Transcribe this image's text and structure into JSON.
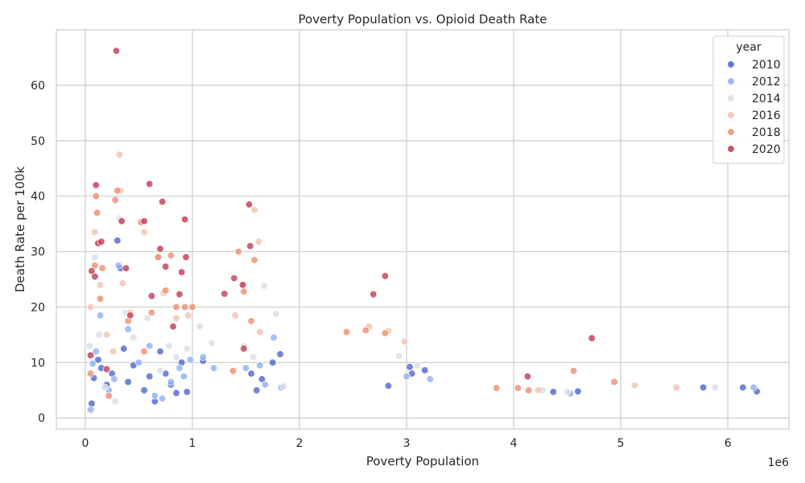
{
  "chart_data": {
    "type": "scatter",
    "title": "Poverty Population vs. Opioid Death Rate",
    "xlabel": "Poverty Population",
    "ylabel": "Death Rate per 100k",
    "x_scale_label": "1e6",
    "xlim": [
      -0.27,
      6.57
    ],
    "ylim": [
      -2.0,
      70.0
    ],
    "x_ticks": [
      0,
      1,
      2,
      3,
      4,
      5,
      6
    ],
    "y_ticks": [
      0,
      10,
      20,
      30,
      40,
      50,
      60
    ],
    "grid": true,
    "legend": {
      "title": "year",
      "placement": "top-right"
    },
    "series": [
      {
        "name": "2010",
        "color": "#4a61c8",
        "points": [
          [
            0.06,
            2.6
          ],
          [
            0.08,
            7.2
          ],
          [
            0.12,
            10.5
          ],
          [
            0.15,
            9.0
          ],
          [
            0.2,
            6.0
          ],
          [
            0.25,
            8.0
          ],
          [
            0.3,
            32.0
          ],
          [
            0.33,
            27.0
          ],
          [
            0.36,
            12.5
          ],
          [
            0.4,
            6.5
          ],
          [
            0.45,
            9.5
          ],
          [
            0.55,
            5.0
          ],
          [
            0.6,
            7.5
          ],
          [
            0.65,
            3.0
          ],
          [
            0.7,
            12.0
          ],
          [
            0.75,
            8.0
          ],
          [
            0.8,
            6.0
          ],
          [
            0.85,
            4.5
          ],
          [
            0.9,
            10.0
          ],
          [
            0.95,
            4.7
          ],
          [
            1.1,
            10.3
          ],
          [
            1.55,
            8.0
          ],
          [
            1.6,
            5.0
          ],
          [
            1.65,
            7.0
          ],
          [
            1.75,
            10.0
          ],
          [
            1.82,
            11.5
          ],
          [
            2.83,
            5.8
          ],
          [
            3.03,
            9.2
          ],
          [
            3.05,
            8.0
          ],
          [
            3.17,
            8.6
          ],
          [
            4.37,
            4.7
          ],
          [
            4.6,
            4.8
          ],
          [
            5.77,
            5.5
          ],
          [
            6.14,
            5.5
          ],
          [
            6.27,
            4.8
          ]
        ]
      },
      {
        "name": "2012",
        "color": "#8aaef5",
        "points": [
          [
            0.05,
            1.5
          ],
          [
            0.07,
            9.8
          ],
          [
            0.1,
            12.0
          ],
          [
            0.14,
            18.5
          ],
          [
            0.22,
            5.0
          ],
          [
            0.27,
            7.0
          ],
          [
            0.31,
            27.5
          ],
          [
            0.4,
            16.0
          ],
          [
            0.5,
            10.0
          ],
          [
            0.6,
            13.0
          ],
          [
            0.65,
            4.0
          ],
          [
            0.72,
            3.5
          ],
          [
            0.8,
            6.5
          ],
          [
            0.88,
            9.0
          ],
          [
            0.92,
            7.5
          ],
          [
            0.98,
            10.5
          ],
          [
            1.1,
            11.0
          ],
          [
            1.2,
            9.0
          ],
          [
            1.5,
            9.0
          ],
          [
            1.63,
            9.5
          ],
          [
            1.68,
            6.0
          ],
          [
            1.76,
            14.5
          ],
          [
            1.83,
            5.5
          ],
          [
            3.0,
            7.5
          ],
          [
            3.22,
            7.0
          ],
          [
            4.53,
            4.4
          ],
          [
            6.24,
            5.5
          ]
        ]
      },
      {
        "name": "2014",
        "color": "#d9dce8",
        "points": [
          [
            0.04,
            13.0
          ],
          [
            0.09,
            29.0
          ],
          [
            0.13,
            15.0
          ],
          [
            0.18,
            5.5
          ],
          [
            0.28,
            3.0
          ],
          [
            0.32,
            36.0
          ],
          [
            0.38,
            19.0
          ],
          [
            0.45,
            14.5
          ],
          [
            0.58,
            18.0
          ],
          [
            0.7,
            8.5
          ],
          [
            0.78,
            13.0
          ],
          [
            0.85,
            11.0
          ],
          [
            0.95,
            12.5
          ],
          [
            1.07,
            16.5
          ],
          [
            1.18,
            13.5
          ],
          [
            1.48,
            13.0
          ],
          [
            1.57,
            11.0
          ],
          [
            1.67,
            23.8
          ],
          [
            1.78,
            18.8
          ],
          [
            1.85,
            5.7
          ],
          [
            2.93,
            11.2
          ],
          [
            3.1,
            9.5
          ],
          [
            4.27,
            5.0
          ],
          [
            4.5,
            4.7
          ],
          [
            5.88,
            5.5
          ]
        ]
      },
      {
        "name": "2016",
        "color": "#f1c2aa",
        "points": [
          [
            0.05,
            20.0
          ],
          [
            0.09,
            33.5
          ],
          [
            0.14,
            24.0
          ],
          [
            0.2,
            15.0
          ],
          [
            0.26,
            12.0
          ],
          [
            0.32,
            47.5
          ],
          [
            0.33,
            41.0
          ],
          [
            0.35,
            24.3
          ],
          [
            0.42,
            19.0
          ],
          [
            0.55,
            33.5
          ],
          [
            0.68,
            29.0
          ],
          [
            0.73,
            22.5
          ],
          [
            0.85,
            18.0
          ],
          [
            0.96,
            18.5
          ],
          [
            1.4,
            18.5
          ],
          [
            1.48,
            24.0
          ],
          [
            1.58,
            37.5
          ],
          [
            1.62,
            31.8
          ],
          [
            1.63,
            15.5
          ],
          [
            2.65,
            16.5
          ],
          [
            2.83,
            15.7
          ],
          [
            2.98,
            13.8
          ],
          [
            4.23,
            5.0
          ],
          [
            5.13,
            5.9
          ],
          [
            5.52,
            5.5
          ]
        ]
      },
      {
        "name": "2018",
        "color": "#eb8b6e",
        "points": [
          [
            0.05,
            8.0
          ],
          [
            0.09,
            27.5
          ],
          [
            0.1,
            40.0
          ],
          [
            0.11,
            37.0
          ],
          [
            0.14,
            21.5
          ],
          [
            0.16,
            27.0
          ],
          [
            0.22,
            4.0
          ],
          [
            0.28,
            39.3
          ],
          [
            0.3,
            41.0
          ],
          [
            0.4,
            17.5
          ],
          [
            0.52,
            35.3
          ],
          [
            0.55,
            12.0
          ],
          [
            0.62,
            19.0
          ],
          [
            0.68,
            29.0
          ],
          [
            0.75,
            23.0
          ],
          [
            0.8,
            29.3
          ],
          [
            0.85,
            20.0
          ],
          [
            0.93,
            20.0
          ],
          [
            1.0,
            20.0
          ],
          [
            1.38,
            8.5
          ],
          [
            1.43,
            30.0
          ],
          [
            1.48,
            22.8
          ],
          [
            1.55,
            17.5
          ],
          [
            1.58,
            28.5
          ],
          [
            2.44,
            15.5
          ],
          [
            2.62,
            15.8
          ],
          [
            2.8,
            15.3
          ],
          [
            3.84,
            5.4
          ],
          [
            4.04,
            5.4
          ],
          [
            4.14,
            5.0
          ],
          [
            4.56,
            8.5
          ],
          [
            4.94,
            6.5
          ]
        ]
      },
      {
        "name": "2020",
        "color": "#c0364f",
        "points": [
          [
            0.05,
            11.3
          ],
          [
            0.06,
            26.5
          ],
          [
            0.09,
            25.5
          ],
          [
            0.1,
            42.0
          ],
          [
            0.12,
            31.5
          ],
          [
            0.15,
            31.8
          ],
          [
            0.2,
            8.8
          ],
          [
            0.29,
            66.2
          ],
          [
            0.34,
            35.5
          ],
          [
            0.38,
            27.0
          ],
          [
            0.42,
            18.5
          ],
          [
            0.55,
            35.5
          ],
          [
            0.6,
            42.2
          ],
          [
            0.62,
            22.0
          ],
          [
            0.7,
            30.5
          ],
          [
            0.72,
            39.0
          ],
          [
            0.75,
            27.3
          ],
          [
            0.82,
            16.5
          ],
          [
            0.88,
            22.3
          ],
          [
            0.9,
            26.3
          ],
          [
            0.93,
            35.8
          ],
          [
            0.94,
            29.0
          ],
          [
            1.3,
            22.4
          ],
          [
            1.39,
            25.2
          ],
          [
            1.47,
            24.0
          ],
          [
            1.53,
            38.5
          ],
          [
            1.54,
            31.0
          ],
          [
            1.48,
            12.5
          ],
          [
            2.69,
            22.3
          ],
          [
            2.8,
            25.6
          ],
          [
            4.13,
            7.5
          ],
          [
            4.73,
            14.4
          ]
        ]
      }
    ]
  }
}
